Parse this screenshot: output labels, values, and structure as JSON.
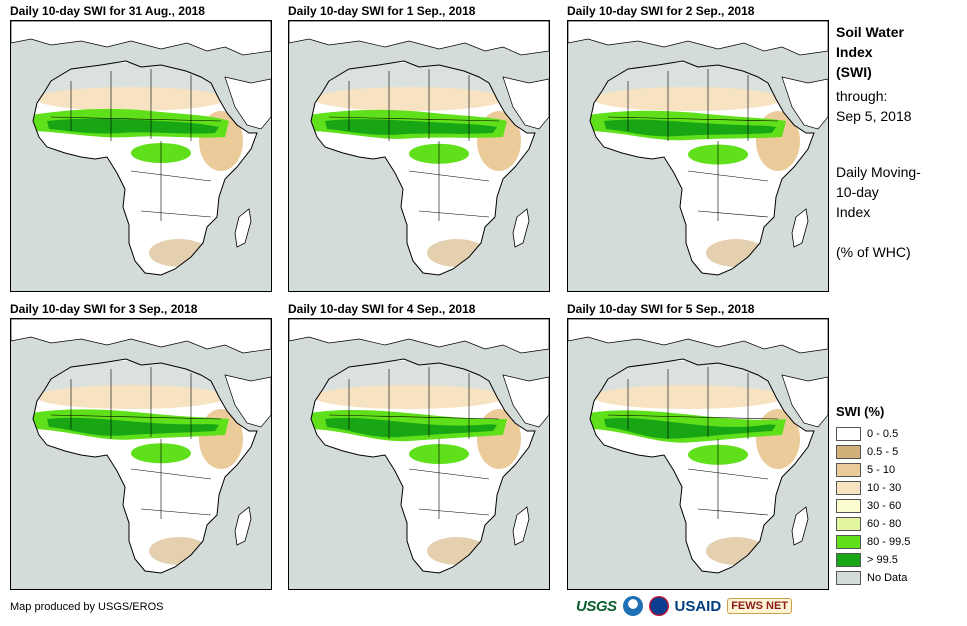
{
  "panels": [
    {
      "title": "Daily 10-day  SWI for 31 Aug., 2018"
    },
    {
      "title": "Daily 10-day  SWI for 1  Sep., 2018"
    },
    {
      "title": "Daily 10-day  SWI for 2  Sep., 2018"
    },
    {
      "title": "Daily 10-day  SWI for 3  Sep., 2018"
    },
    {
      "title": "Daily 10-day  SWI for 4  Sep., 2018"
    },
    {
      "title": "Daily 10-day  SWI for 5  Sep., 2018"
    }
  ],
  "side": {
    "title_line1": "Soil Water",
    "title_line2": "Index",
    "title_line3": "(SWI)",
    "through_label": "through:",
    "through_date": "Sep 5, 2018",
    "desc_line1": "Daily Moving-",
    "desc_line2": "10-day",
    "desc_line3": "Index",
    "unit": "(% of WHC)"
  },
  "legend": {
    "title": "SWI (%)",
    "items": [
      {
        "label": "0 - 0.5",
        "color": "#ffffff"
      },
      {
        "label": "0.5 - 5",
        "color": "#d2b07a"
      },
      {
        "label": "5 - 10",
        "color": "#ebcb9a"
      },
      {
        "label": "10 - 30",
        "color": "#f7e3c2"
      },
      {
        "label": "30 - 60",
        "color": "#fbfbd0"
      },
      {
        "label": "60 - 80",
        "color": "#e2f7a0"
      },
      {
        "label": "80 - 99.5",
        "color": "#5fe01a"
      },
      {
        "label": "> 99.5",
        "color": "#19a614"
      },
      {
        "label": "No Data",
        "color": "#d3dcd8"
      }
    ]
  },
  "footer": {
    "credit": "Map produced by USGS/EROS",
    "logo_usgs": "USGS",
    "logo_usaid": "USAID",
    "logo_fews": "FEWS NET"
  }
}
